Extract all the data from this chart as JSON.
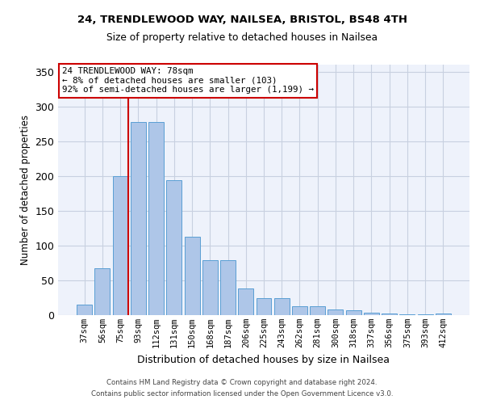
{
  "title1": "24, TRENDLEWOOD WAY, NAILSEA, BRISTOL, BS48 4TH",
  "title2": "Size of property relative to detached houses in Nailsea",
  "xlabel": "Distribution of detached houses by size in Nailsea",
  "ylabel": "Number of detached properties",
  "categories": [
    "37sqm",
    "56sqm",
    "75sqm",
    "93sqm",
    "112sqm",
    "131sqm",
    "150sqm",
    "168sqm",
    "187sqm",
    "206sqm",
    "225sqm",
    "243sqm",
    "262sqm",
    "281sqm",
    "300sqm",
    "318sqm",
    "337sqm",
    "356sqm",
    "375sqm",
    "393sqm",
    "412sqm"
  ],
  "values": [
    15,
    67,
    200,
    278,
    278,
    194,
    113,
    79,
    79,
    38,
    24,
    24,
    13,
    13,
    8,
    7,
    4,
    2,
    1,
    1,
    2
  ],
  "bar_color": "#aec6e8",
  "bar_edge_color": "#5a9fd4",
  "annotation_text_line1": "24 TRENDLEWOOD WAY: 78sqm",
  "annotation_text_line2": "← 8% of detached houses are smaller (103)",
  "annotation_text_line3": "92% of semi-detached houses are larger (1,199) →",
  "annotation_box_color": "#ffffff",
  "annotation_box_edge_color": "#cc0000",
  "vline_color": "#cc0000",
  "footer1": "Contains HM Land Registry data © Crown copyright and database right 2024.",
  "footer2": "Contains public sector information licensed under the Open Government Licence v3.0.",
  "ylim": [
    0,
    360
  ],
  "yticks": [
    0,
    50,
    100,
    150,
    200,
    250,
    300,
    350
  ],
  "grid_color": "#c8d0e0",
  "bg_color": "#eef2fb"
}
